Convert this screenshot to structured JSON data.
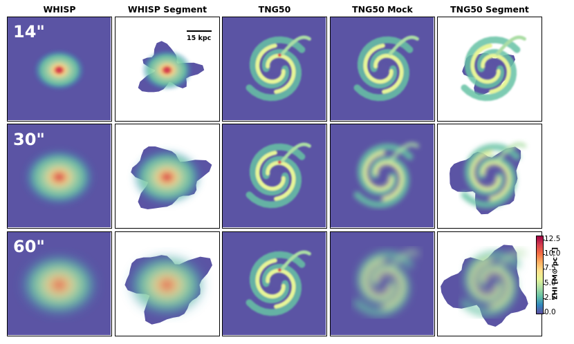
{
  "columns": [
    "WHISP",
    "WHISP Segment",
    "TNG50",
    "TNG50 Mock",
    "TNG50 Segment"
  ],
  "rows": [
    {
      "label": "14\"",
      "blur": 0.5
    },
    {
      "label": "30\"",
      "blur": 3
    },
    {
      "label": "60\"",
      "blur": 5.5
    }
  ],
  "scalebar": {
    "label": "15 kpc"
  },
  "colorbar": {
    "label": "ΣHI [M⊙ pc⁻²]",
    "ticks": [
      "0.0",
      "2.5",
      "5.0",
      "7.5",
      "10.0",
      "12.5"
    ],
    "colors": [
      "#5e4fa2",
      "#3288bd",
      "#66c2a5",
      "#abdda4",
      "#e6f598",
      "#fee08b",
      "#fdae61",
      "#f46d43",
      "#d53e4f",
      "#9e0142"
    ]
  },
  "background_color": "#5b54a4"
}
